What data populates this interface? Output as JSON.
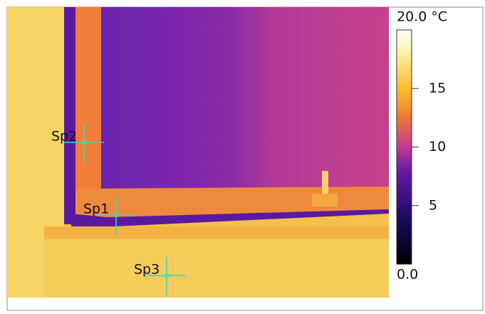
{
  "thermogram": {
    "spots": [
      {
        "label": "Sp1"
      },
      {
        "label": "Sp2"
      },
      {
        "label": "Sp3"
      }
    ],
    "scale": {
      "range": [
        {
          "value": 0,
          "label": "0.0"
        },
        {
          "value": 20,
          "label": "20.0 °C"
        }
      ],
      "ticks": [
        5,
        10,
        15
      ]
    }
  }
}
